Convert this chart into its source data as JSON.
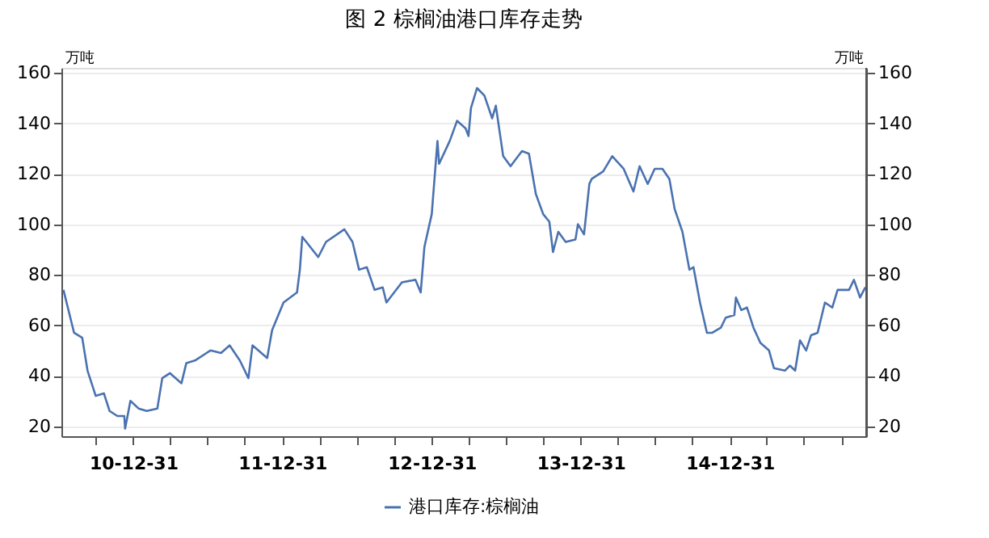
{
  "chart_data": {
    "type": "line",
    "title": "图 2 棕榈油港口库存走势",
    "ylabel": "万吨",
    "y2label": "万吨",
    "x": [
      "2010-07-13",
      "2010-08-08",
      "2010-08-28",
      "2010-09-10",
      "2010-09-30",
      "2010-10-20",
      "2010-11-03",
      "2010-11-22",
      "2010-12-09",
      "2010-12-11",
      "2010-12-24",
      "2011-01-13",
      "2011-02-02",
      "2011-02-28",
      "2011-03-12",
      "2011-03-31",
      "2011-04-28",
      "2011-05-10",
      "2011-05-31",
      "2011-07-08",
      "2011-08-03",
      "2011-08-24",
      "2011-09-18",
      "2011-10-09",
      "2011-10-19",
      "2011-11-24",
      "2011-12-06",
      "2012-01-03",
      "2012-02-05",
      "2012-02-12",
      "2012-02-18",
      "2012-03-28",
      "2012-04-16",
      "2012-05-31",
      "2012-06-20",
      "2012-07-06",
      "2012-07-25",
      "2012-08-13",
      "2012-09-02",
      "2012-09-11",
      "2012-10-19",
      "2012-11-21",
      "2012-12-04",
      "2012-12-13",
      "2012-12-31",
      "2013-01-14",
      "2013-01-18",
      "2013-02-13",
      "2013-03-03",
      "2013-03-24",
      "2013-03-31",
      "2013-04-06",
      "2013-04-21",
      "2013-05-09",
      "2013-05-28",
      "2013-06-06",
      "2013-06-24",
      "2013-07-12",
      "2013-08-09",
      "2013-08-26",
      "2013-09-12",
      "2013-09-30",
      "2013-10-15",
      "2013-10-24",
      "2013-11-06",
      "2013-11-24",
      "2013-12-18",
      "2013-12-24",
      "2014-01-08",
      "2014-01-21",
      "2014-01-27",
      "2014-02-24",
      "2014-03-18",
      "2014-04-15",
      "2014-05-09",
      "2014-05-24",
      "2014-06-13",
      "2014-06-30",
      "2014-07-19",
      "2014-08-05",
      "2014-08-18",
      "2014-09-06",
      "2014-09-23",
      "2014-10-03",
      "2014-10-19",
      "2014-11-05",
      "2014-11-18",
      "2014-12-09",
      "2014-12-21",
      "2015-01-11",
      "2015-01-15",
      "2015-01-28",
      "2015-02-11",
      "2015-02-27",
      "2015-03-16",
      "2015-04-06",
      "2015-04-18",
      "2015-05-15",
      "2015-05-27",
      "2015-06-09",
      "2015-06-21",
      "2015-07-06",
      "2015-07-18",
      "2015-08-03",
      "2015-08-21",
      "2015-09-08",
      "2015-09-21",
      "2015-10-19",
      "2015-10-31",
      "2015-11-15",
      "2015-11-28"
    ],
    "series": [
      {
        "name": "港口库存:棕榈油",
        "color": "#4a72b0",
        "values": [
          74,
          57,
          55,
          42,
          32,
          33,
          26,
          24,
          24,
          19,
          30,
          27,
          26,
          27,
          39,
          41,
          37,
          45,
          46,
          50,
          49,
          52,
          46,
          39,
          52,
          47,
          58,
          69,
          73,
          82,
          95,
          87,
          93,
          98,
          93,
          82,
          83,
          74,
          75,
          69,
          77,
          78,
          73,
          91,
          104,
          133,
          124,
          133,
          141,
          138,
          135,
          146,
          154,
          151,
          142,
          147,
          127,
          123,
          129,
          128,
          112,
          104,
          101,
          89,
          97,
          93,
          94,
          100,
          96,
          116,
          118,
          121,
          127,
          122,
          113,
          123,
          116,
          122,
          122,
          118,
          106,
          97,
          82,
          83,
          69,
          57,
          57,
          59,
          63,
          64,
          71,
          66,
          67,
          59,
          53,
          50,
          43,
          42,
          44,
          42,
          54,
          50,
          56,
          57,
          69,
          67,
          74,
          74,
          78,
          71,
          75
        ]
      }
    ],
    "xlim": [
      "2010-07-08",
      "2015-11-30"
    ],
    "xticks": [
      {
        "value": "2010-09-30",
        "label": null
      },
      {
        "value": "2010-12-31",
        "label": "10-12-31"
      },
      {
        "value": "2011-03-31",
        "label": null
      },
      {
        "value": "2011-06-30",
        "label": null
      },
      {
        "value": "2011-09-30",
        "label": null
      },
      {
        "value": "2011-12-31",
        "label": "11-12-31"
      },
      {
        "value": "2012-03-31",
        "label": null
      },
      {
        "value": "2012-06-30",
        "label": null
      },
      {
        "value": "2012-09-30",
        "label": null
      },
      {
        "value": "2012-12-31",
        "label": "12-12-31"
      },
      {
        "value": "2013-03-31",
        "label": null
      },
      {
        "value": "2013-06-30",
        "label": null
      },
      {
        "value": "2013-09-30",
        "label": null
      },
      {
        "value": "2013-12-31",
        "label": "13-12-31"
      },
      {
        "value": "2014-03-31",
        "label": null
      },
      {
        "value": "2014-06-30",
        "label": null
      },
      {
        "value": "2014-09-30",
        "label": null
      },
      {
        "value": "2014-12-31",
        "label": "14-12-31"
      },
      {
        "value": "2015-03-31",
        "label": null
      },
      {
        "value": "2015-06-30",
        "label": null
      },
      {
        "value": "2015-09-30",
        "label": null
      }
    ],
    "ylim": [
      16,
      162
    ],
    "yticks": [
      20,
      40,
      60,
      80,
      100,
      120,
      140,
      160
    ],
    "y2lim": [
      16,
      162
    ],
    "y2ticks": [
      20,
      40,
      60,
      80,
      100,
      120,
      140,
      160
    ],
    "grid": "y",
    "legend": "bottom"
  }
}
